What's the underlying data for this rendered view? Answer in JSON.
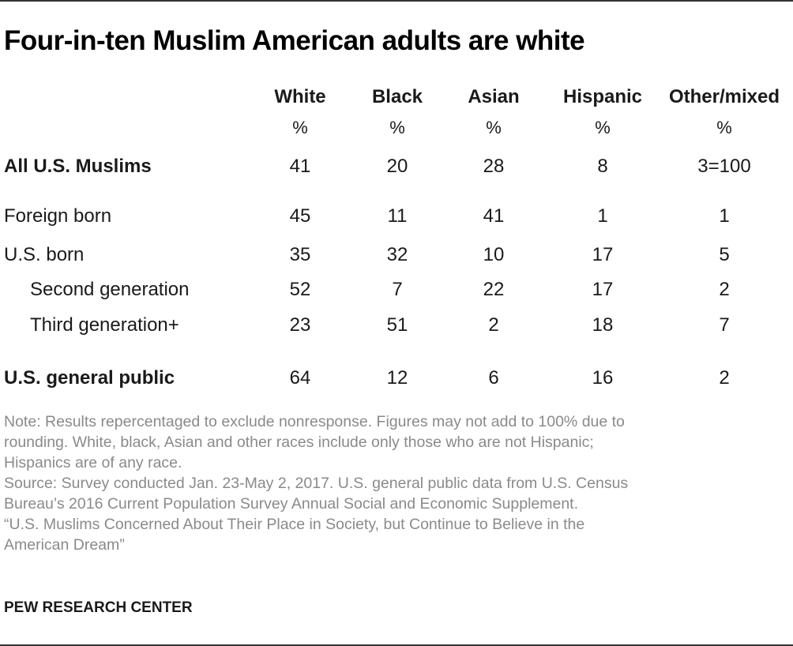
{
  "title": "Four-in-ten  Muslim American adults are white",
  "chart_data": {
    "type": "table",
    "columns": [
      "White",
      "Black",
      "Asian",
      "Hispanic",
      "Other/mixed"
    ],
    "units": [
      "%",
      "%",
      "%",
      "%",
      "%"
    ],
    "rows": [
      {
        "label": "All U.S. Muslims",
        "values": [
          "41",
          "20",
          "28",
          "8",
          "3=100"
        ]
      },
      {
        "label": "Foreign born",
        "values": [
          "45",
          "11",
          "41",
          "1",
          "1"
        ]
      },
      {
        "label": "U.S. born",
        "values": [
          "35",
          "32",
          "10",
          "17",
          "5"
        ]
      },
      {
        "label": "Second generation",
        "values": [
          "52",
          "7",
          "22",
          "17",
          "2"
        ]
      },
      {
        "label": "Third generation+",
        "values": [
          "23",
          "51",
          "2",
          "18",
          "7"
        ]
      },
      {
        "label": "U.S. general public",
        "values": [
          "64",
          "12",
          "6",
          "16",
          "2"
        ]
      }
    ]
  },
  "notes": [
    "Note: Results repercentaged to exclude nonresponse. Figures may not add to 100% due to",
    "rounding. White, black, Asian and other races include only those who are not Hispanic;",
    "Hispanics are of any race.",
    "Source: Survey conducted Jan. 23-May 2, 2017. U.S. general public data from U.S. Census",
    "Bureau’s 2016 Current Population Survey Annual Social and Economic Supplement.",
    "“U.S. Muslims Concerned About Their Place in Society, but Continue to Believe in the",
    "American Dream”"
  ],
  "source_org": "PEW RESEARCH CENTER"
}
